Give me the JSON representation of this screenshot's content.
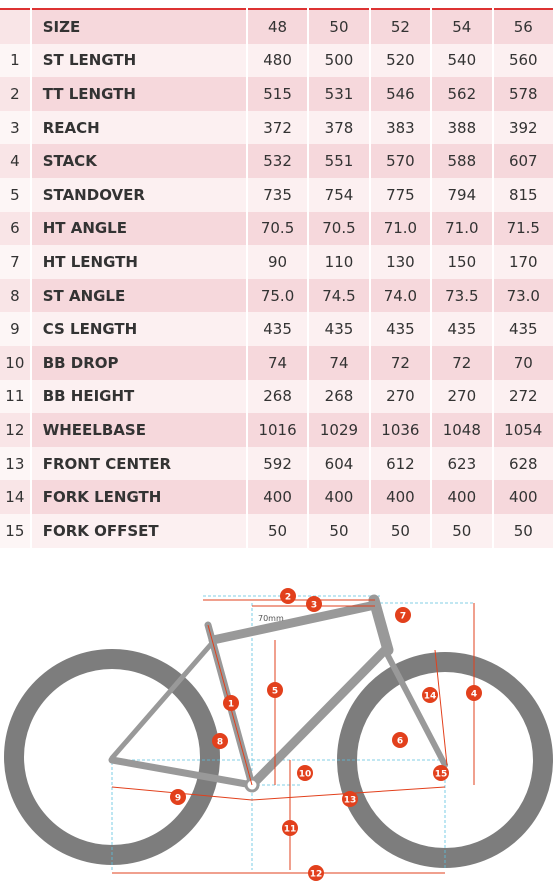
{
  "table": {
    "header": {
      "label": "SIZE",
      "sizes": [
        "48",
        "50",
        "52",
        "54",
        "56"
      ]
    },
    "rows": [
      {
        "index": "1",
        "name": "ST LENGTH",
        "values": [
          "480",
          "500",
          "520",
          "540",
          "560"
        ]
      },
      {
        "index": "2",
        "name": "TT LENGTH",
        "values": [
          "515",
          "531",
          "546",
          "562",
          "578"
        ]
      },
      {
        "index": "3",
        "name": "REACH",
        "values": [
          "372",
          "378",
          "383",
          "388",
          "392"
        ]
      },
      {
        "index": "4",
        "name": "STACK",
        "values": [
          "532",
          "551",
          "570",
          "588",
          "607"
        ]
      },
      {
        "index": "5",
        "name": "STANDOVER",
        "values": [
          "735",
          "754",
          "775",
          "794",
          "815"
        ]
      },
      {
        "index": "6",
        "name": "HT ANGLE",
        "values": [
          "70.5",
          "70.5",
          "71.0",
          "71.0",
          "71.5"
        ]
      },
      {
        "index": "7",
        "name": "HT LENGTH",
        "values": [
          "90",
          "110",
          "130",
          "150",
          "170"
        ]
      },
      {
        "index": "8",
        "name": "ST ANGLE",
        "values": [
          "75.0",
          "74.5",
          "74.0",
          "73.5",
          "73.0"
        ]
      },
      {
        "index": "9",
        "name": "CS LENGTH",
        "values": [
          "435",
          "435",
          "435",
          "435",
          "435"
        ]
      },
      {
        "index": "10",
        "name": "BB DROP",
        "values": [
          "74",
          "74",
          "72",
          "72",
          "70"
        ]
      },
      {
        "index": "11",
        "name": "BB HEIGHT",
        "values": [
          "268",
          "268",
          "270",
          "270",
          "272"
        ]
      },
      {
        "index": "12",
        "name": "WHEELBASE",
        "values": [
          "1016",
          "1029",
          "1036",
          "1048",
          "1054"
        ]
      },
      {
        "index": "13",
        "name": "FRONT CENTER",
        "values": [
          "592",
          "604",
          "612",
          "623",
          "628"
        ]
      },
      {
        "index": "14",
        "name": "FORK LENGTH",
        "values": [
          "400",
          "400",
          "400",
          "400",
          "400"
        ]
      },
      {
        "index": "15",
        "name": "FORK OFFSET",
        "values": [
          "50",
          "50",
          "50",
          "50",
          "50"
        ]
      }
    ]
  },
  "diagram": {
    "offset_note": "70mm",
    "markers": [
      "1",
      "2",
      "3",
      "4",
      "5",
      "6",
      "7",
      "8",
      "9",
      "10",
      "11",
      "12",
      "13",
      "14",
      "15"
    ]
  }
}
